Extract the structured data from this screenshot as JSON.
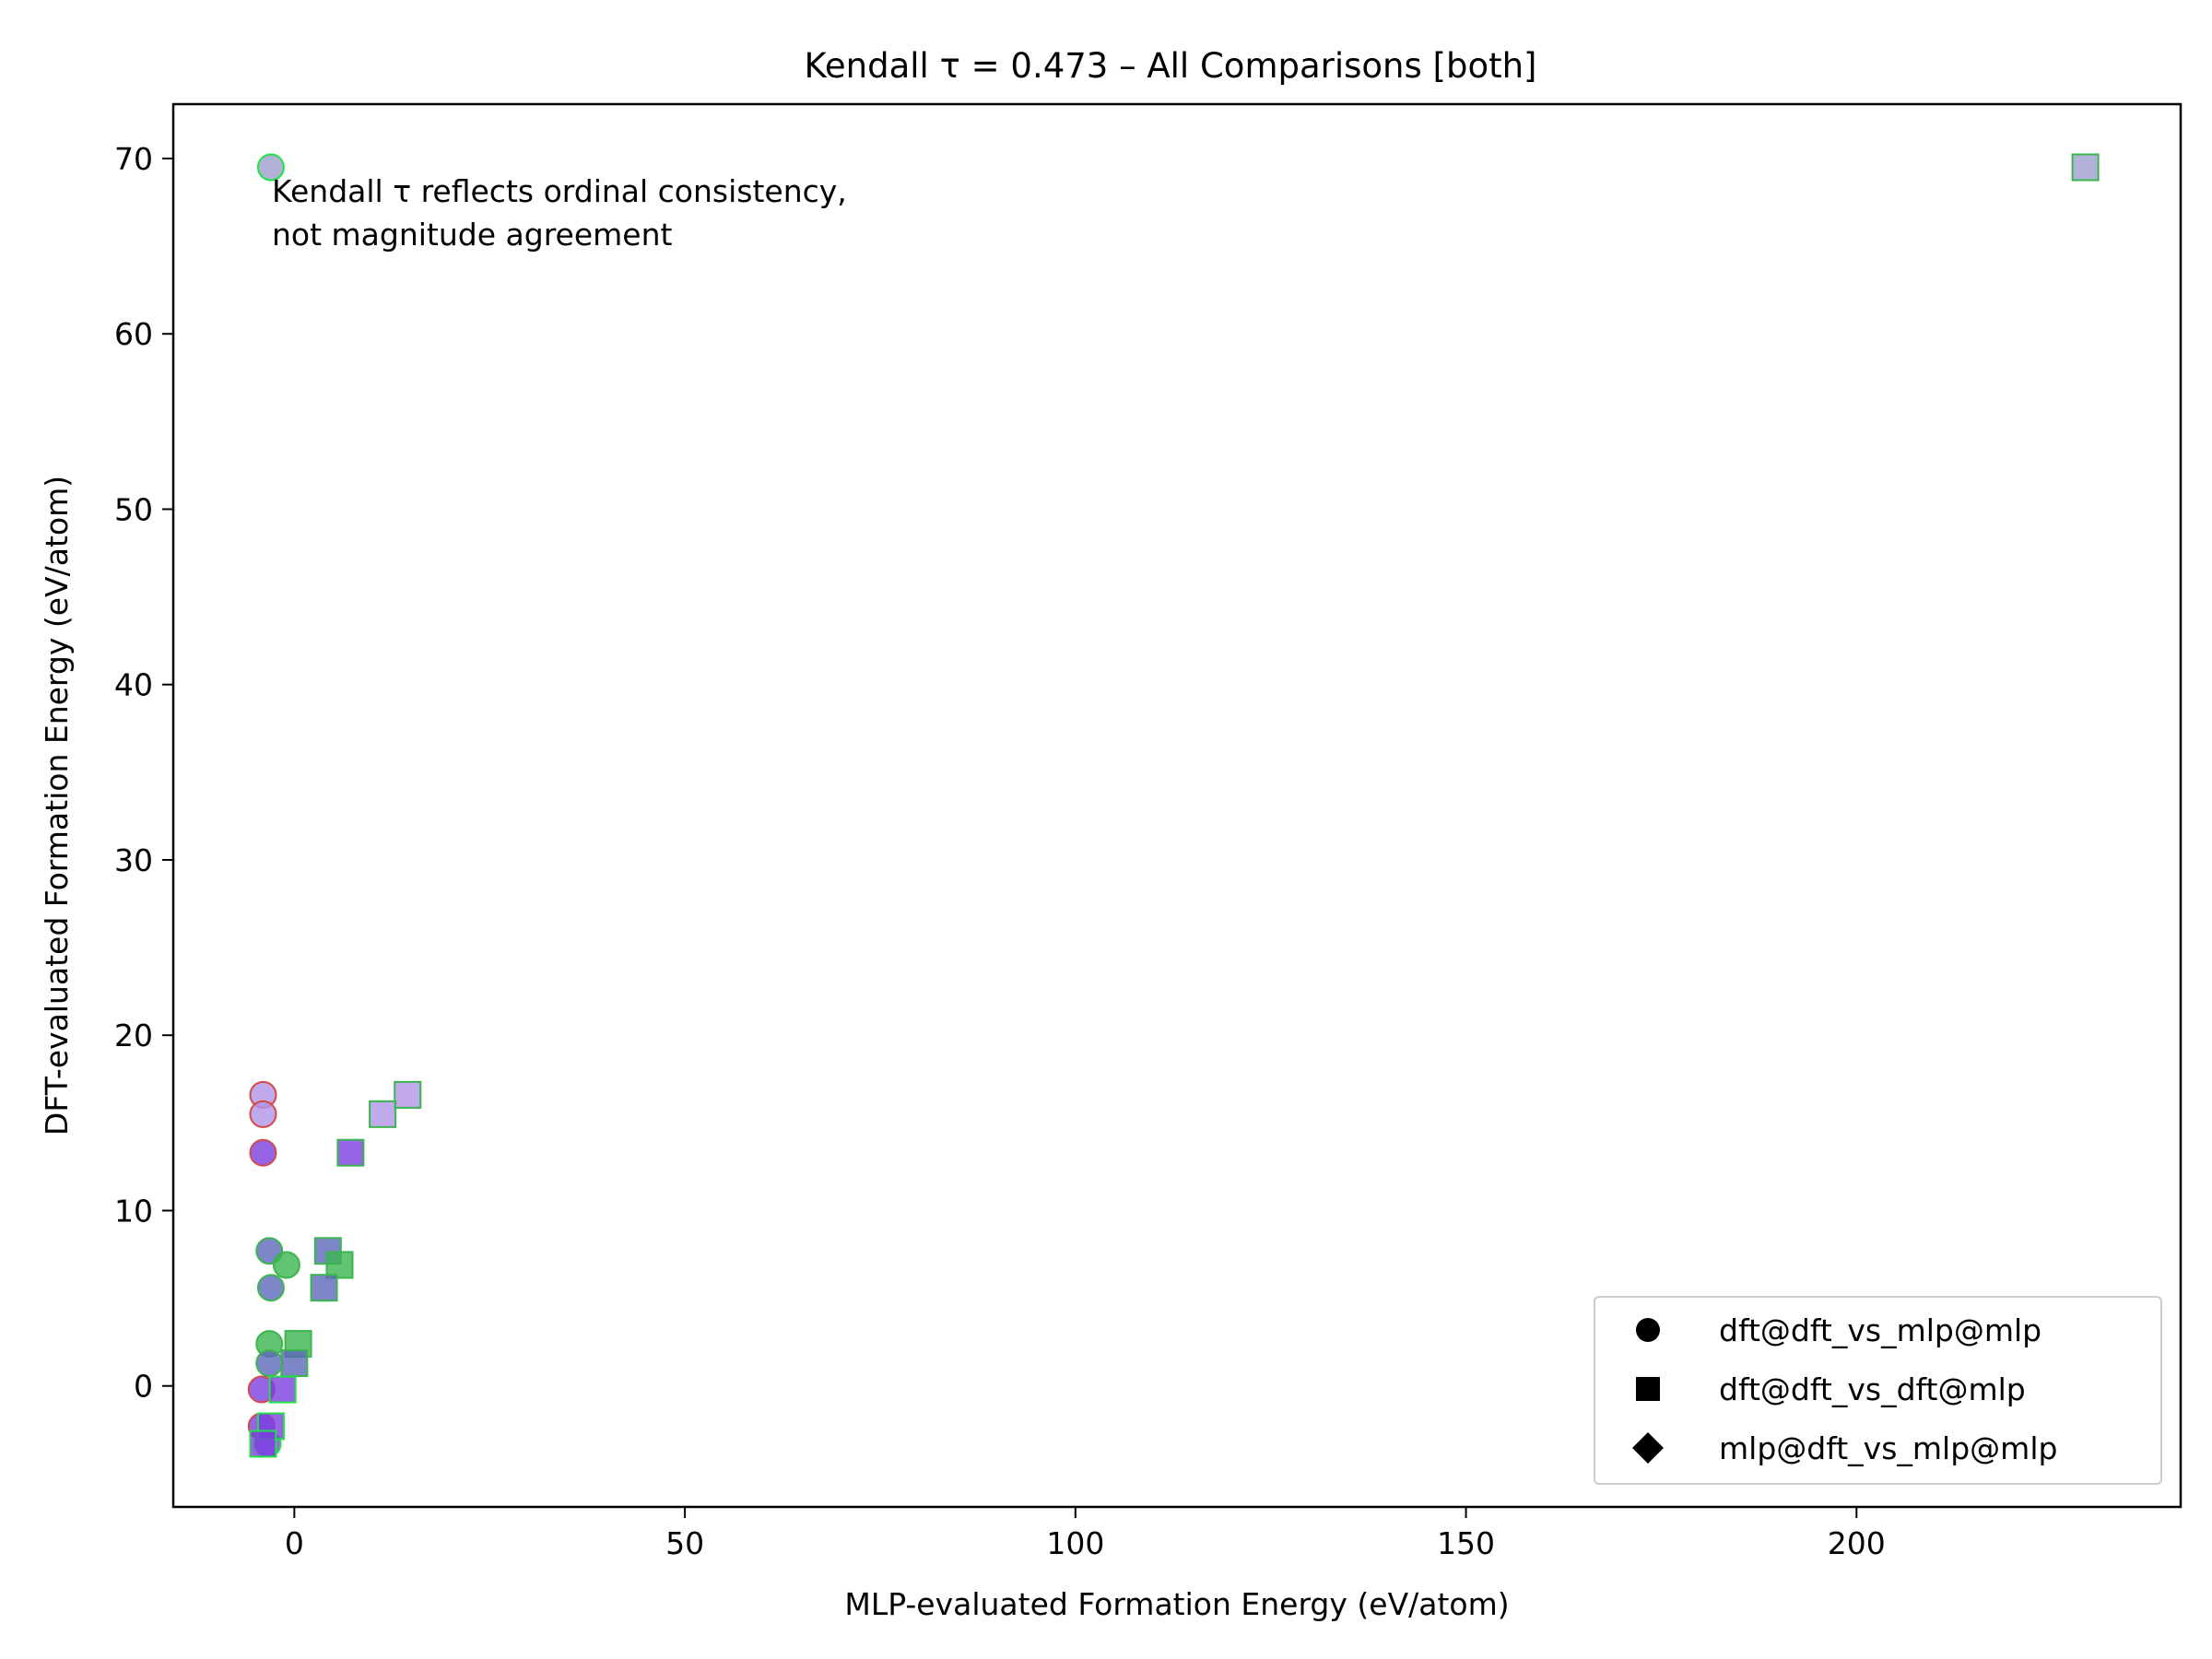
{
  "chart_data": {
    "type": "scatter",
    "title": "Kendall τ = 0.473 – All Comparisons [both]",
    "xlabel": "MLP-evaluated Formation Energy (eV/atom)",
    "ylabel": "DFT-evaluated Formation Energy (eV/atom)",
    "xlim": [
      -15.5,
      241.5
    ],
    "ylim": [
      -6.9,
      73.1
    ],
    "x_ticks": [
      0,
      50,
      100,
      150,
      200
    ],
    "y_ticks": [
      0,
      10,
      20,
      30,
      40,
      50,
      60,
      70
    ],
    "grid": false,
    "legend_position": "bottom-right",
    "annotation": [
      "Kendall τ reflects ordinal consistency,",
      "not magnitude agreement"
    ],
    "colors": {
      "green": "#3cb550",
      "purple": "#7b3fe0",
      "light_purple": "#b195e6",
      "grey_purple": "#9f9ecd",
      "slate": "#5c68b8",
      "red_edge": "#d24a4a",
      "green_edge": "#22e04a"
    },
    "series": [
      {
        "name": "dft@dft_vs_mlp@mlp",
        "marker": "circle",
        "points": [
          {
            "x": -3.0,
            "y": 69.5,
            "fill": "#9f9ecd",
            "edge": "#22e04a"
          },
          {
            "x": -4.0,
            "y": 16.6,
            "fill": "#b195e6",
            "edge": "#d24a4a"
          },
          {
            "x": -4.0,
            "y": 15.5,
            "fill": "#b195e6",
            "edge": "#d24a4a"
          },
          {
            "x": -4.0,
            "y": 13.3,
            "fill": "#7b3fe0",
            "edge": "#d24a4a"
          },
          {
            "x": -3.2,
            "y": 7.7,
            "fill": "#5c68b8",
            "edge": "#3cb550"
          },
          {
            "x": -1.0,
            "y": 6.9,
            "fill": "#3cb550",
            "edge": "#3cb550"
          },
          {
            "x": -3.0,
            "y": 5.6,
            "fill": "#5c68b8",
            "edge": "#3cb550"
          },
          {
            "x": -3.2,
            "y": 2.4,
            "fill": "#3cb550",
            "edge": "#3cb550"
          },
          {
            "x": -3.2,
            "y": 1.3,
            "fill": "#5c68b8",
            "edge": "#3cb550"
          },
          {
            "x": -4.2,
            "y": -0.2,
            "fill": "#7b3fe0",
            "edge": "#d24a4a"
          },
          {
            "x": -4.2,
            "y": -2.3,
            "fill": "#7b3fe0",
            "edge": "#d24a4a"
          },
          {
            "x": -3.4,
            "y": -3.3,
            "fill": "#7b3fe0",
            "edge": "#22e04a"
          }
        ]
      },
      {
        "name": "dft@dft_vs_dft@mlp",
        "marker": "square",
        "points": [
          {
            "x": 229.3,
            "y": 69.5,
            "fill": "#9f9ecd",
            "edge": "#3cb550"
          },
          {
            "x": 14.5,
            "y": 16.6,
            "fill": "#b195e6",
            "edge": "#3cb550"
          },
          {
            "x": 11.3,
            "y": 15.5,
            "fill": "#b195e6",
            "edge": "#3cb550"
          },
          {
            "x": 7.2,
            "y": 13.3,
            "fill": "#7b3fe0",
            "edge": "#3cb550"
          },
          {
            "x": 4.3,
            "y": 7.7,
            "fill": "#5c68b8",
            "edge": "#3cb550"
          },
          {
            "x": 5.8,
            "y": 6.9,
            "fill": "#3cb550",
            "edge": "#3cb550"
          },
          {
            "x": 3.8,
            "y": 5.6,
            "fill": "#5c68b8",
            "edge": "#3cb550"
          },
          {
            "x": 0.5,
            "y": 2.4,
            "fill": "#3cb550",
            "edge": "#3cb550"
          },
          {
            "x": 0.0,
            "y": 1.3,
            "fill": "#5c68b8",
            "edge": "#3cb550"
          },
          {
            "x": -1.5,
            "y": -0.2,
            "fill": "#7b3fe0",
            "edge": "#22e04a"
          },
          {
            "x": -3.0,
            "y": -2.3,
            "fill": "#7b3fe0",
            "edge": "#22e04a"
          },
          {
            "x": -4.0,
            "y": -3.3,
            "fill": "#7b3fe0",
            "edge": "#22e04a"
          }
        ]
      },
      {
        "name": "mlp@dft_vs_mlp@mlp",
        "marker": "diamond",
        "points": []
      }
    ]
  }
}
